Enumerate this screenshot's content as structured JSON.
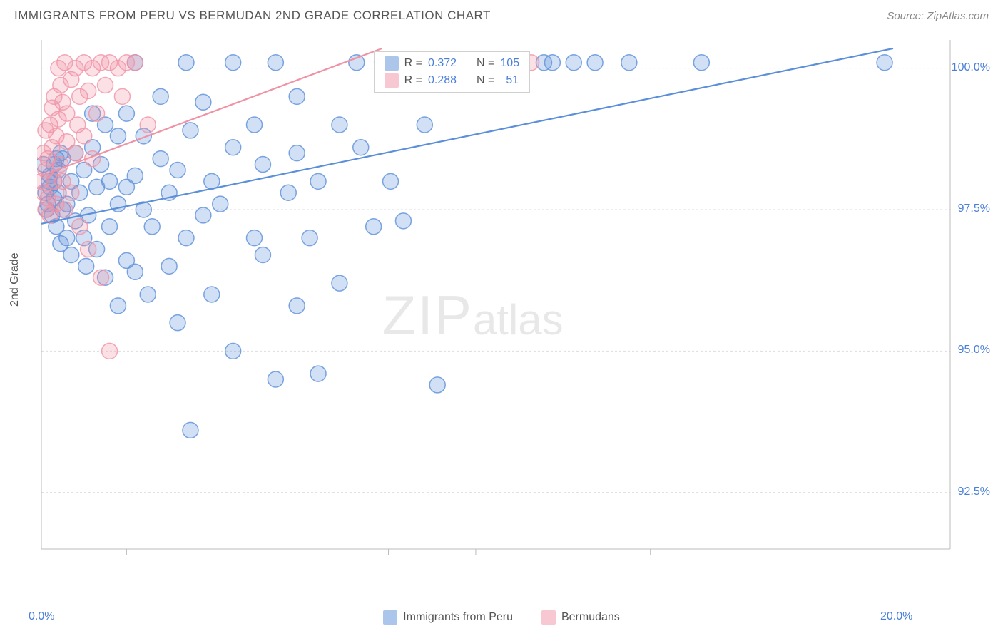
{
  "header": {
    "title": "IMMIGRANTS FROM PERU VS BERMUDAN 2ND GRADE CORRELATION CHART",
    "source_label": "Source: ",
    "source_name": "ZipAtlas.com"
  },
  "chart": {
    "type": "scatter",
    "xlim": [
      0,
      20
    ],
    "ylim": [
      91.5,
      100.5
    ],
    "ylabel": "2nd Grade",
    "yticks": [
      {
        "v": 100.0,
        "label": "100.0%"
      },
      {
        "v": 97.5,
        "label": "97.5%"
      },
      {
        "v": 95.0,
        "label": "95.0%"
      },
      {
        "v": 92.5,
        "label": "92.5%"
      }
    ],
    "xticks_minor": [
      2.0,
      8.15,
      10.2,
      14.3
    ],
    "xticks_labeled": [
      {
        "v": 0.0,
        "label": "0.0%"
      },
      {
        "v": 20.0,
        "label": "20.0%"
      }
    ],
    "grid_color": "#dddddd",
    "axis_color": "#bbbbbb",
    "background_color": "#ffffff",
    "marker_radius": 11,
    "marker_fill_opacity": 0.28,
    "marker_stroke_opacity": 0.8,
    "line_width": 2.2,
    "series": [
      {
        "name": "Immigrants from Peru",
        "color": "#5b8fd9",
        "R": "0.372",
        "N": "105",
        "regression": {
          "x0": 0,
          "y0": 97.25,
          "x1": 20,
          "y1": 100.35
        },
        "points": [
          [
            0.1,
            97.8
          ],
          [
            0.15,
            97.6
          ],
          [
            0.2,
            97.9
          ],
          [
            0.2,
            98.1
          ],
          [
            0.25,
            97.4
          ],
          [
            0.3,
            97.7
          ],
          [
            0.3,
            98.0
          ],
          [
            0.35,
            97.2
          ],
          [
            0.4,
            97.8
          ],
          [
            0.4,
            98.2
          ],
          [
            0.45,
            96.9
          ],
          [
            0.5,
            97.5
          ],
          [
            0.5,
            98.4
          ],
          [
            0.6,
            97.0
          ],
          [
            0.6,
            97.6
          ],
          [
            0.7,
            98.0
          ],
          [
            0.7,
            96.7
          ],
          [
            0.8,
            97.3
          ],
          [
            0.8,
            98.5
          ],
          [
            0.9,
            97.8
          ],
          [
            1.0,
            97.0
          ],
          [
            1.0,
            98.2
          ],
          [
            1.05,
            96.5
          ],
          [
            1.1,
            97.4
          ],
          [
            1.2,
            98.6
          ],
          [
            1.2,
            99.2
          ],
          [
            1.3,
            96.8
          ],
          [
            1.3,
            97.9
          ],
          [
            1.4,
            98.3
          ],
          [
            1.5,
            99.0
          ],
          [
            1.5,
            96.3
          ],
          [
            1.6,
            97.2
          ],
          [
            1.6,
            98.0
          ],
          [
            1.8,
            95.8
          ],
          [
            1.8,
            97.6
          ],
          [
            1.8,
            98.8
          ],
          [
            2.0,
            96.6
          ],
          [
            2.0,
            97.9
          ],
          [
            2.0,
            99.2
          ],
          [
            2.2,
            98.1
          ],
          [
            2.2,
            96.4
          ],
          [
            2.2,
            100.1
          ],
          [
            2.4,
            97.5
          ],
          [
            2.4,
            98.8
          ],
          [
            2.5,
            96.0
          ],
          [
            2.6,
            97.2
          ],
          [
            2.8,
            98.4
          ],
          [
            2.8,
            99.5
          ],
          [
            3.0,
            97.8
          ],
          [
            3.0,
            96.5
          ],
          [
            3.2,
            98.2
          ],
          [
            3.2,
            95.5
          ],
          [
            3.4,
            97.0
          ],
          [
            3.4,
            100.1
          ],
          [
            3.5,
            98.9
          ],
          [
            3.5,
            93.6
          ],
          [
            3.8,
            97.4
          ],
          [
            3.8,
            99.4
          ],
          [
            4.0,
            96.0
          ],
          [
            4.0,
            98.0
          ],
          [
            4.2,
            97.6
          ],
          [
            4.5,
            95.0
          ],
          [
            4.5,
            98.6
          ],
          [
            4.5,
            100.1
          ],
          [
            5.0,
            97.0
          ],
          [
            5.0,
            99.0
          ],
          [
            5.2,
            96.7
          ],
          [
            5.2,
            98.3
          ],
          [
            5.5,
            94.5
          ],
          [
            5.5,
            100.1
          ],
          [
            5.8,
            97.8
          ],
          [
            6.0,
            95.8
          ],
          [
            6.0,
            98.5
          ],
          [
            6.0,
            99.5
          ],
          [
            6.3,
            97.0
          ],
          [
            6.5,
            98.0
          ],
          [
            6.5,
            94.6
          ],
          [
            7.0,
            99.0
          ],
          [
            7.0,
            96.2
          ],
          [
            7.4,
            100.1
          ],
          [
            7.5,
            98.6
          ],
          [
            7.8,
            97.2
          ],
          [
            8.0,
            100.1
          ],
          [
            8.2,
            98.0
          ],
          [
            8.5,
            97.3
          ],
          [
            9.0,
            99.0
          ],
          [
            9.3,
            94.4
          ],
          [
            10.0,
            100.1
          ],
          [
            10.0,
            100.1
          ],
          [
            10.3,
            100.1
          ],
          [
            11.0,
            100.1
          ],
          [
            11.2,
            100.1
          ],
          [
            11.8,
            100.1
          ],
          [
            12.0,
            100.1
          ],
          [
            12.5,
            100.1
          ],
          [
            13.0,
            100.1
          ],
          [
            13.8,
            100.1
          ],
          [
            15.5,
            100.1
          ],
          [
            19.8,
            100.1
          ],
          [
            0.05,
            98.3
          ],
          [
            0.12,
            97.5
          ],
          [
            0.18,
            98.0
          ],
          [
            0.3,
            98.3
          ],
          [
            0.35,
            98.4
          ],
          [
            0.45,
            98.5
          ]
        ]
      },
      {
        "name": "Bermudans",
        "color": "#f092a5",
        "R": "0.288",
        "N": "51",
        "regression": {
          "x0": 0,
          "y0": 98.1,
          "x1": 8,
          "y1": 100.35
        },
        "points": [
          [
            0.0,
            98.0
          ],
          [
            0.05,
            97.8
          ],
          [
            0.05,
            98.5
          ],
          [
            0.1,
            97.5
          ],
          [
            0.1,
            98.2
          ],
          [
            0.1,
            98.9
          ],
          [
            0.15,
            97.7
          ],
          [
            0.15,
            98.4
          ],
          [
            0.2,
            99.0
          ],
          [
            0.2,
            97.4
          ],
          [
            0.25,
            98.6
          ],
          [
            0.25,
            99.3
          ],
          [
            0.3,
            98.0
          ],
          [
            0.3,
            99.5
          ],
          [
            0.35,
            97.6
          ],
          [
            0.35,
            98.8
          ],
          [
            0.4,
            99.1
          ],
          [
            0.4,
            100.0
          ],
          [
            0.45,
            98.3
          ],
          [
            0.45,
            99.7
          ],
          [
            0.5,
            98.0
          ],
          [
            0.5,
            99.4
          ],
          [
            0.55,
            97.5
          ],
          [
            0.55,
            100.1
          ],
          [
            0.6,
            98.7
          ],
          [
            0.6,
            99.2
          ],
          [
            0.7,
            97.8
          ],
          [
            0.7,
            99.8
          ],
          [
            0.8,
            98.5
          ],
          [
            0.8,
            100.0
          ],
          [
            0.85,
            99.0
          ],
          [
            0.9,
            97.2
          ],
          [
            0.9,
            99.5
          ],
          [
            1.0,
            98.8
          ],
          [
            1.0,
            100.1
          ],
          [
            1.1,
            96.8
          ],
          [
            1.1,
            99.6
          ],
          [
            1.2,
            100.0
          ],
          [
            1.2,
            98.4
          ],
          [
            1.3,
            99.2
          ],
          [
            1.4,
            100.1
          ],
          [
            1.4,
            96.3
          ],
          [
            1.5,
            99.7
          ],
          [
            1.6,
            100.1
          ],
          [
            1.6,
            95.0
          ],
          [
            1.8,
            100.0
          ],
          [
            1.9,
            99.5
          ],
          [
            2.0,
            100.1
          ],
          [
            2.2,
            100.1
          ],
          [
            2.5,
            99.0
          ],
          [
            11.5,
            100.1
          ]
        ]
      }
    ],
    "legend": {
      "label_peru": "Immigrants from Peru",
      "label_berm": "Bermudans"
    },
    "stats_labels": {
      "R": "R =",
      "N": "N ="
    },
    "watermark": {
      "zip": "ZIP",
      "atlas": "atlas"
    }
  }
}
